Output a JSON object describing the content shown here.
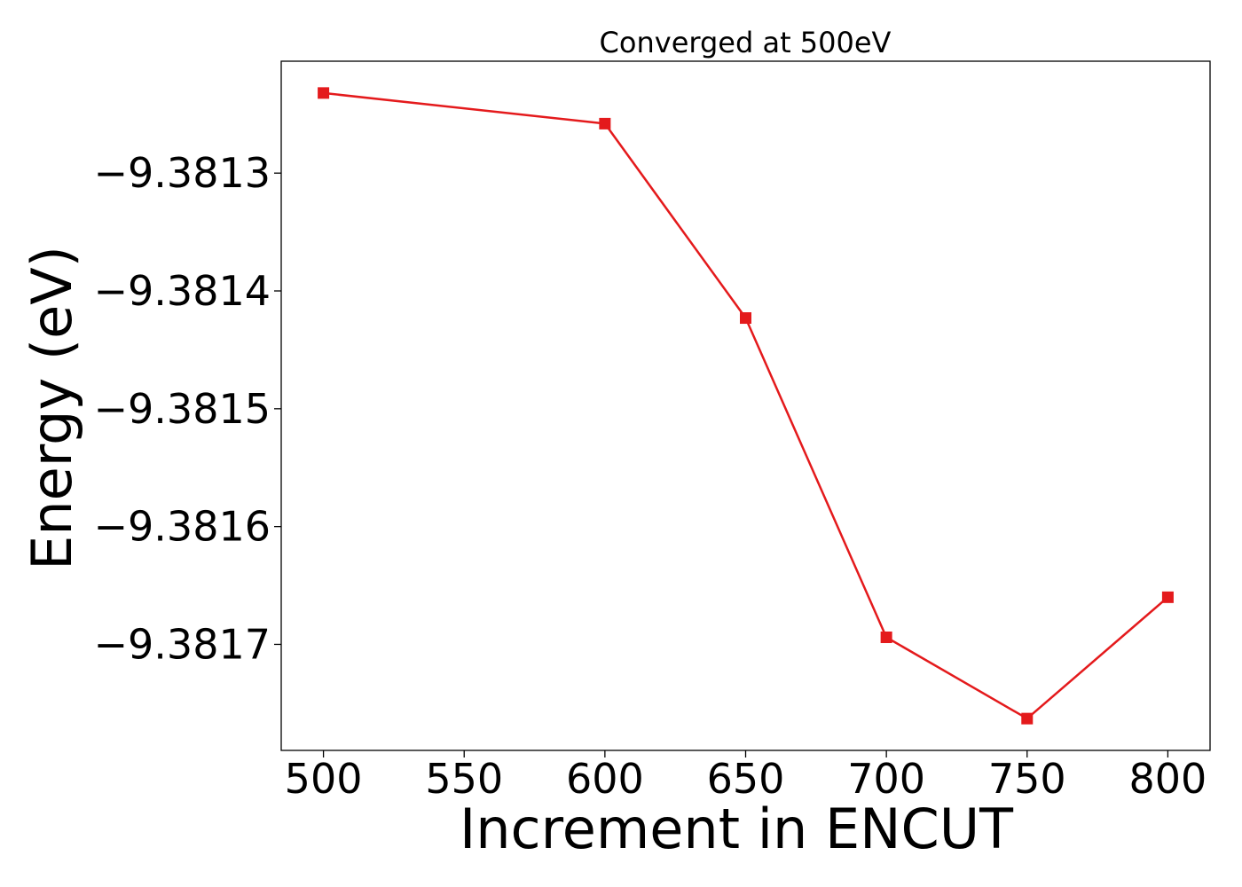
{
  "chart_data": {
    "type": "line",
    "title": "Converged at 500eV",
    "xlabel": "Increment in ENCUT",
    "ylabel": "Energy (eV)",
    "x": [
      500,
      600,
      650,
      700,
      750,
      800
    ],
    "series": [
      {
        "values": [
          -9.381232,
          -9.381258,
          -9.381423,
          -9.381694,
          -9.381763,
          -9.38166
        ],
        "color": "#e41a1c",
        "marker": "square"
      }
    ],
    "xlim": [
      485,
      815
    ],
    "ylim": [
      -9.38179,
      -9.381205
    ],
    "xticks": [
      500,
      550,
      600,
      650,
      700,
      750,
      800
    ],
    "xtick_labels": [
      "500",
      "550",
      "600",
      "650",
      "700",
      "750",
      "800"
    ],
    "yticks": [
      -9.3813,
      -9.3814,
      -9.3815,
      -9.3816,
      -9.3817
    ],
    "ytick_labels": [
      "−9.3813",
      "−9.3814",
      "−9.3815",
      "−9.3816",
      "−9.3817"
    ],
    "grid": false,
    "legend": false
  }
}
